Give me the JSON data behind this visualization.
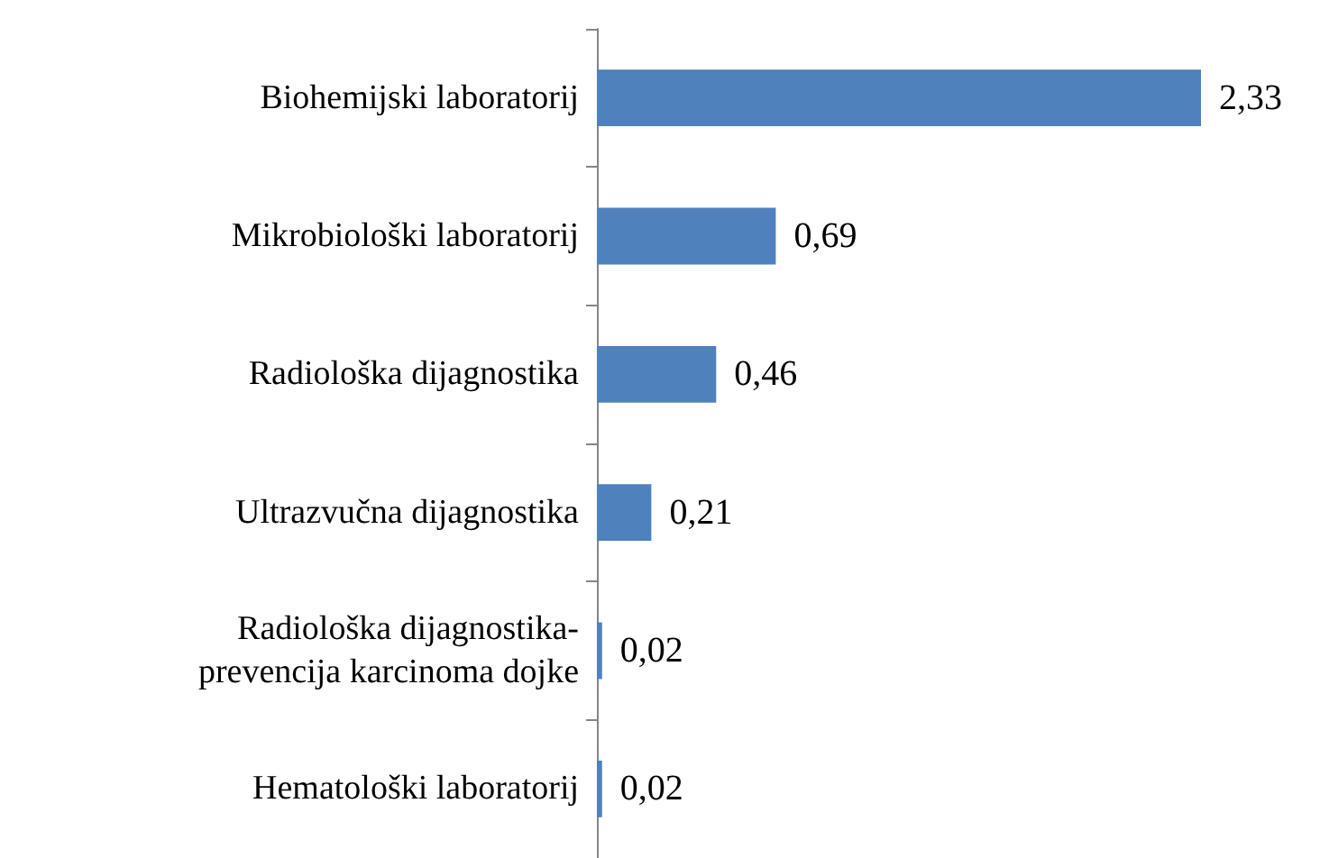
{
  "chart_data": {
    "type": "bar",
    "orientation": "horizontal",
    "categories": [
      "Biohemijski laboratorij",
      "Mikrobiološki laboratorij",
      "Radiološka dijagnostika",
      "Ultrazvučna dijagnostika",
      "Radiološka dijagnostika-\nprevencija karcinoma dojke",
      "Hematološki laboratorij"
    ],
    "values": [
      2.33,
      0.69,
      0.46,
      0.21,
      0.02,
      0.02
    ],
    "color": "#4f81bd",
    "value_labels": [
      "2,33",
      "0,69",
      "0,46",
      "0,21",
      "0,02",
      "0,02"
    ]
  }
}
